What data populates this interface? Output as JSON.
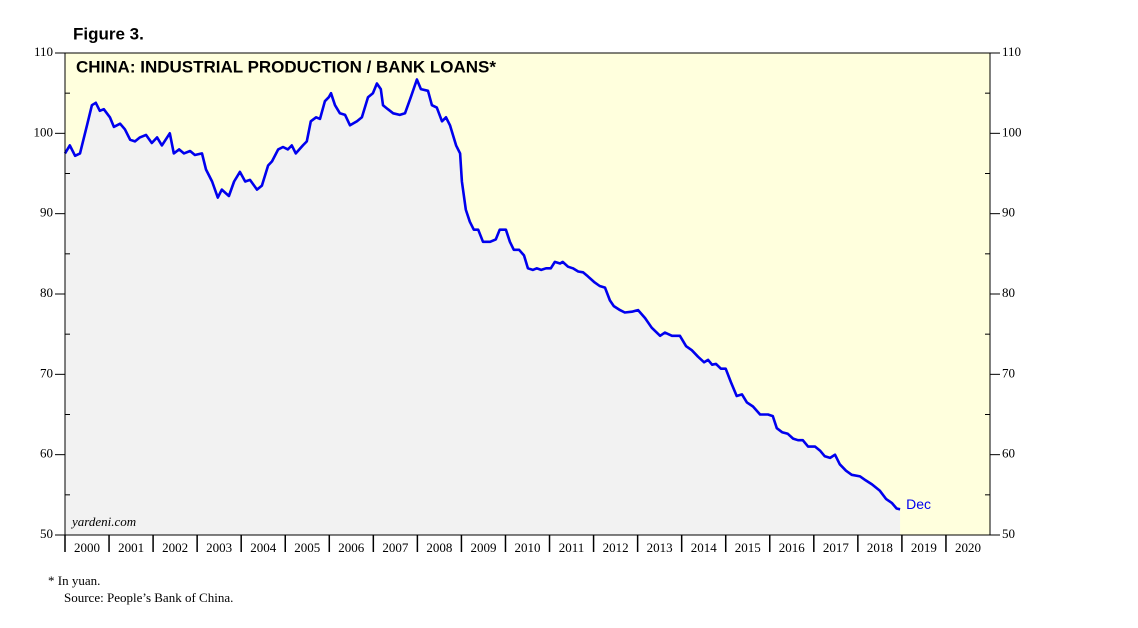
{
  "chart_data": {
    "type": "line",
    "figure_label": "Figure 3.",
    "title": "CHINA: INDUSTRIAL PRODUCTION / BANK LOANS*",
    "watermark": "yardeni.com",
    "annotation": "Dec",
    "footnotes": [
      "*  In yuan.",
      "Source: People’s Bank of China."
    ],
    "xlim": [
      2000,
      2021
    ],
    "xticks": [
      2000,
      2001,
      2002,
      2003,
      2004,
      2005,
      2006,
      2007,
      2008,
      2009,
      2010,
      2011,
      2012,
      2013,
      2014,
      2015,
      2016,
      2017,
      2018,
      2019,
      2020
    ],
    "ylim": [
      50,
      110
    ],
    "yticks": [
      50,
      60,
      70,
      80,
      90,
      100,
      110
    ],
    "background_color": "#ffffdd",
    "area_color": "#f2f2f2",
    "series": [
      {
        "color": "#0000ee",
        "x": [
          2000.0,
          2000.11,
          2000.23,
          2000.34,
          2000.5,
          2000.61,
          2000.7,
          2000.79,
          2000.88,
          2001.02,
          2001.11,
          2001.25,
          2001.36,
          2001.48,
          2001.59,
          2001.7,
          2001.84,
          2001.97,
          2002.09,
          2002.2,
          2002.38,
          2002.47,
          2002.59,
          2002.7,
          2002.84,
          2002.95,
          2003.11,
          2003.2,
          2003.34,
          2003.47,
          2003.56,
          2003.72,
          2003.84,
          2003.97,
          2004.09,
          2004.2,
          2004.36,
          2004.47,
          2004.61,
          2004.7,
          2004.84,
          2004.95,
          2005.06,
          2005.15,
          2005.24,
          2005.4,
          2005.49,
          2005.58,
          2005.7,
          2005.79,
          2005.9,
          2005.99,
          2006.04,
          2006.13,
          2006.24,
          2006.36,
          2006.47,
          2006.63,
          2006.74,
          2006.88,
          2006.99,
          2007.08,
          2007.17,
          2007.22,
          2007.33,
          2007.45,
          2007.6,
          2007.72,
          2007.85,
          2007.99,
          2008.08,
          2008.24,
          2008.33,
          2008.44,
          2008.56,
          2008.65,
          2008.74,
          2008.88,
          2008.97,
          2009.01,
          2009.1,
          2009.19,
          2009.28,
          2009.38,
          2009.49,
          2009.65,
          2009.78,
          2009.87,
          2010.01,
          2010.1,
          2010.19,
          2010.31,
          2010.42,
          2010.51,
          2010.62,
          2010.71,
          2010.81,
          2010.92,
          2011.03,
          2011.12,
          2011.24,
          2011.3,
          2011.42,
          2011.53,
          2011.65,
          2011.76,
          2011.87,
          2012.01,
          2012.14,
          2012.26,
          2012.37,
          2012.46,
          2012.6,
          2012.71,
          2012.87,
          2013.01,
          2013.17,
          2013.32,
          2013.51,
          2013.62,
          2013.78,
          2013.96,
          2014.1,
          2014.23,
          2014.37,
          2014.51,
          2014.6,
          2014.69,
          2014.78,
          2014.89,
          2015.0,
          2015.12,
          2015.25,
          2015.37,
          2015.48,
          2015.62,
          2015.78,
          2015.96,
          2016.07,
          2016.16,
          2016.28,
          2016.41,
          2016.53,
          2016.64,
          2016.75,
          2016.87,
          2017.03,
          2017.14,
          2017.25,
          2017.37,
          2017.48,
          2017.59,
          2017.73,
          2017.86,
          2018.05,
          2018.18,
          2018.32,
          2018.5,
          2018.64,
          2018.77,
          2018.88,
          2018.96
        ],
        "values": [
          97.5,
          98.5,
          97.2,
          97.5,
          101,
          103.5,
          103.8,
          102.8,
          103,
          102,
          100.8,
          101.2,
          100.5,
          99.2,
          99,
          99.5,
          99.8,
          98.8,
          99.5,
          98.5,
          100,
          97.5,
          98,
          97.5,
          97.8,
          97.3,
          97.5,
          95.5,
          94,
          92,
          93,
          92.2,
          94,
          95.2,
          94,
          94.2,
          93,
          93.5,
          96,
          96.5,
          98,
          98.3,
          98,
          98.5,
          97.5,
          98.5,
          99,
          101.5,
          102,
          101.8,
          104,
          104.5,
          105,
          103.5,
          102.5,
          102.3,
          101,
          101.5,
          102,
          104.5,
          105,
          106.2,
          105.5,
          103.5,
          103,
          102.5,
          102.3,
          102.5,
          104.5,
          106.7,
          105.5,
          105.3,
          103.5,
          103.2,
          101.5,
          102,
          101,
          98.5,
          97.5,
          94,
          90.5,
          89,
          88,
          88,
          86.5,
          86.5,
          86.8,
          88,
          88,
          86.5,
          85.5,
          85.5,
          84.8,
          83.2,
          83,
          83.2,
          83,
          83.2,
          83.2,
          84,
          83.8,
          84,
          83.4,
          83.2,
          82.8,
          82.7,
          82.2,
          81.5,
          81,
          80.8,
          79.2,
          78.5,
          78,
          77.7,
          77.8,
          78,
          77,
          75.8,
          74.8,
          75.2,
          74.8,
          74.8,
          73.5,
          73,
          72.2,
          71.5,
          71.8,
          71.2,
          71.3,
          70.7,
          70.7,
          69,
          67.3,
          67.5,
          66.5,
          66,
          65,
          65,
          64.8,
          63.3,
          62.8,
          62.6,
          62,
          61.8,
          61.8,
          61,
          61,
          60.5,
          59.8,
          59.6,
          60,
          58.8,
          58,
          57.5,
          57.3,
          56.8,
          56.3,
          55.5,
          54.5,
          54,
          53.3,
          53.2
        ]
      }
    ]
  }
}
